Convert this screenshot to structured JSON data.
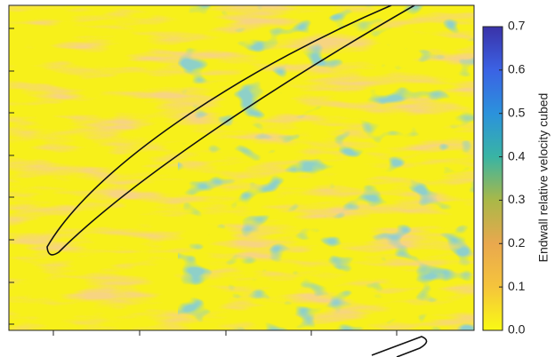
{
  "chart_data": {
    "type": "contour",
    "colorbar_label": "Endwall relative velocity cubed",
    "clim": [
      0,
      0.7
    ],
    "cticks": [
      {
        "value": 0,
        "label": "0.0"
      },
      0.1,
      0.2,
      0.3,
      0.4,
      0.5,
      0.6,
      0.7
    ],
    "colors": [
      "#f9fa14",
      "#f5c43c",
      "#e9a84e",
      "#a9b848",
      "#39b4a4",
      "#2b92dc",
      "#3b62e4",
      "#3a32a8"
    ]
  }
}
